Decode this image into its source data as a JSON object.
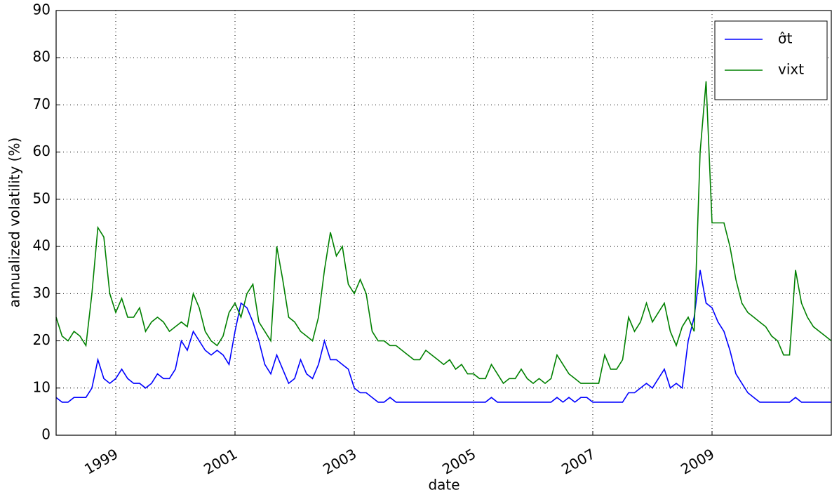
{
  "chart_data": {
    "type": "line",
    "xlabel": "date",
    "ylabel": "annualized volatility (%)",
    "x": [
      1998.0,
      1998.1,
      1998.2,
      1998.3,
      1998.4,
      1998.5,
      1998.6,
      1998.7,
      1998.8,
      1998.9,
      1999.0,
      1999.1,
      1999.2,
      1999.3,
      1999.4,
      1999.5,
      1999.6,
      1999.7,
      1999.8,
      1999.9,
      2000.0,
      2000.1,
      2000.2,
      2000.3,
      2000.4,
      2000.5,
      2000.6,
      2000.7,
      2000.8,
      2000.9,
      2001.0,
      2001.1,
      2001.2,
      2001.3,
      2001.4,
      2001.5,
      2001.6,
      2001.7,
      2001.8,
      2001.9,
      2002.0,
      2002.1,
      2002.2,
      2002.3,
      2002.4,
      2002.5,
      2002.6,
      2002.7,
      2002.8,
      2002.9,
      2003.0,
      2003.1,
      2003.2,
      2003.3,
      2003.4,
      2003.5,
      2003.6,
      2003.7,
      2003.8,
      2003.9,
      2004.0,
      2004.1,
      2004.2,
      2004.3,
      2004.4,
      2004.5,
      2004.6,
      2004.7,
      2004.8,
      2004.9,
      2005.0,
      2005.1,
      2005.2,
      2005.3,
      2005.4,
      2005.5,
      2005.6,
      2005.7,
      2005.8,
      2005.9,
      2006.0,
      2006.1,
      2006.2,
      2006.3,
      2006.4,
      2006.5,
      2006.6,
      2006.7,
      2006.8,
      2006.9,
      2007.0,
      2007.1,
      2007.2,
      2007.3,
      2007.4,
      2007.5,
      2007.6,
      2007.7,
      2007.8,
      2007.9,
      2008.0,
      2008.1,
      2008.2,
      2008.3,
      2008.4,
      2008.5,
      2008.6,
      2008.7,
      2008.8,
      2008.9,
      2009.0,
      2009.1,
      2009.2,
      2009.3,
      2009.4,
      2009.5,
      2009.6,
      2009.7,
      2009.8,
      2009.9,
      2010.0,
      2010.1,
      2010.2,
      2010.3,
      2010.4,
      2010.5,
      2010.6,
      2010.7,
      2010.8,
      2010.9,
      2011.0
    ],
    "series": [
      {
        "name": "σ̂t",
        "color": "#0000ff",
        "values": [
          8,
          7,
          7,
          8,
          8,
          8,
          10,
          16,
          12,
          11,
          12,
          14,
          12,
          11,
          11,
          10,
          11,
          13,
          12,
          12,
          14,
          20,
          18,
          22,
          20,
          18,
          17,
          18,
          17,
          15,
          22,
          28,
          27,
          24,
          20,
          15,
          13,
          17,
          14,
          11,
          12,
          16,
          13,
          12,
          15,
          20,
          16,
          16,
          15,
          14,
          10,
          9,
          9,
          8,
          7,
          7,
          8,
          7,
          7,
          7,
          7,
          7,
          7,
          7,
          7,
          7,
          7,
          7,
          7,
          7,
          7,
          7,
          7,
          8,
          7,
          7,
          7,
          7,
          7,
          7,
          7,
          7,
          7,
          7,
          8,
          7,
          8,
          7,
          8,
          8,
          7,
          7,
          7,
          7,
          7,
          7,
          9,
          9,
          10,
          11,
          10,
          12,
          14,
          10,
          11,
          10,
          20,
          25,
          35,
          28,
          27,
          24,
          22,
          18,
          13,
          11,
          9,
          8,
          7,
          7,
          7,
          7,
          7,
          7,
          8,
          7,
          7,
          7,
          7,
          7,
          7
        ]
      },
      {
        "name": "vixt",
        "color": "#008000",
        "values": [
          25,
          21,
          20,
          22,
          21,
          19,
          30,
          44,
          42,
          30,
          26,
          29,
          25,
          25,
          27,
          22,
          24,
          25,
          24,
          22,
          23,
          24,
          23,
          30,
          27,
          22,
          20,
          19,
          21,
          26,
          28,
          25,
          30,
          32,
          24,
          22,
          20,
          40,
          33,
          25,
          24,
          22,
          21,
          20,
          25,
          35,
          43,
          38,
          40,
          32,
          30,
          33,
          30,
          22,
          20,
          20,
          19,
          19,
          18,
          17,
          16,
          16,
          18,
          17,
          16,
          15,
          16,
          14,
          15,
          13,
          13,
          12,
          12,
          15,
          13,
          11,
          12,
          12,
          14,
          12,
          11,
          12,
          11,
          12,
          17,
          15,
          13,
          12,
          11,
          11,
          11,
          11,
          17,
          14,
          14,
          16,
          25,
          22,
          24,
          28,
          24,
          26,
          28,
          22,
          19,
          23,
          25,
          22,
          60,
          75,
          45,
          45,
          45,
          40,
          33,
          28,
          26,
          25,
          24,
          23,
          21,
          20,
          17,
          17,
          35,
          28,
          25,
          23,
          22,
          21,
          20
        ]
      }
    ],
    "xlim": [
      1998,
      2011
    ],
    "xticks": [
      1999,
      2001,
      2003,
      2005,
      2007,
      2009
    ],
    "ylim": [
      0,
      90
    ],
    "yticks": [
      0,
      10,
      20,
      30,
      40,
      50,
      60,
      70,
      80,
      90
    ],
    "grid": true,
    "legend": "upper right"
  }
}
